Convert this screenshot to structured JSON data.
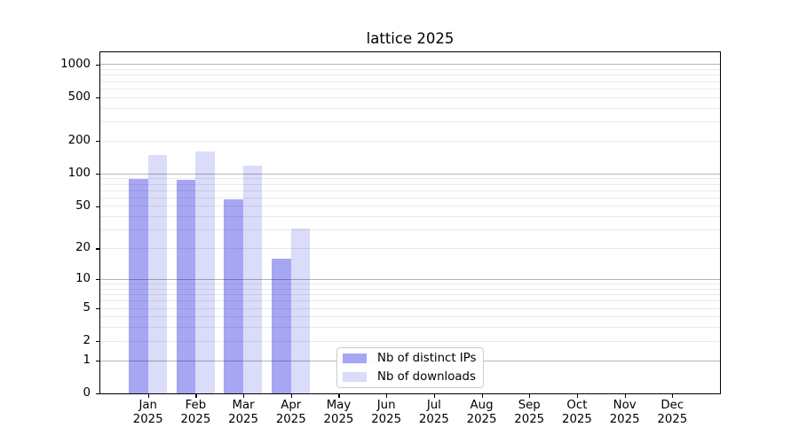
{
  "title": "lattice 2025",
  "chart_data": {
    "type": "bar",
    "title": "lattice 2025",
    "categories": [
      [
        "Jan",
        "2025"
      ],
      [
        "Feb",
        "2025"
      ],
      [
        "Mar",
        "2025"
      ],
      [
        "Apr",
        "2025"
      ],
      [
        "May",
        "2025"
      ],
      [
        "Jun",
        "2025"
      ],
      [
        "Jul",
        "2025"
      ],
      [
        "Aug",
        "2025"
      ],
      [
        "Sep",
        "2025"
      ],
      [
        "Oct",
        "2025"
      ],
      [
        "Nov",
        "2025"
      ],
      [
        "Dec",
        "2025"
      ]
    ],
    "series": [
      {
        "name": "Nb of distinct IPs",
        "color": "#a6a6f3",
        "values": [
          89,
          88,
          58,
          16,
          0,
          0,
          0,
          0,
          0,
          0,
          0,
          0
        ]
      },
      {
        "name": "Nb of downloads",
        "color": "#dbdbfa",
        "values": [
          148,
          160,
          118,
          31,
          0,
          0,
          0,
          0,
          0,
          0,
          0,
          0
        ]
      }
    ],
    "xlabel": "",
    "ylabel": "",
    "yscale": "log1p",
    "ylim": [
      0,
      1290
    ],
    "yticks": [
      0,
      1,
      2,
      5,
      10,
      20,
      50,
      100,
      200,
      500,
      1000
    ],
    "major_gridlines": [
      1,
      10,
      100,
      1000
    ],
    "grid": true,
    "legend_position": "lower center"
  },
  "colors": {
    "bar_ips": "#a6a6f3",
    "bar_downloads": "#dbdbfa",
    "grid_major": "#b5b5b5",
    "grid_minor": "#ebebeb",
    "axis": "#000000",
    "legend_border": "#cccccc"
  }
}
